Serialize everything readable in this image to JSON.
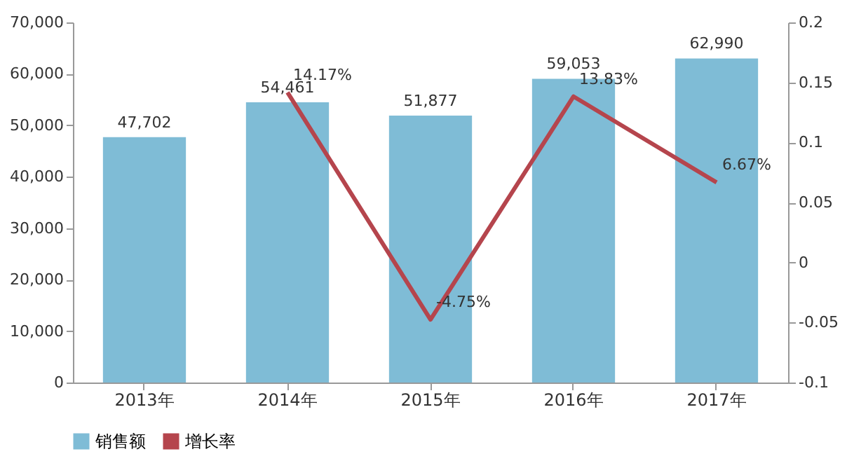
{
  "chart_data": {
    "type": "bar",
    "categories": [
      "2013年",
      "2014年",
      "2015年",
      "2016年",
      "2017年"
    ],
    "series": [
      {
        "name": "销售额",
        "color": "#7fbcd6",
        "values": [
          47702,
          54461,
          51877,
          59053,
          62990
        ],
        "value_labels": [
          "47,702",
          "54,461",
          "51,877",
          "59,053",
          "62,990"
        ]
      },
      {
        "name": "增长率",
        "type": "line",
        "axis": "y2",
        "color": "#b5454d",
        "values": [
          null,
          0.1417,
          -0.0475,
          0.1383,
          0.0667
        ],
        "value_labels": [
          null,
          "14.17%",
          "-4.75%",
          "13.83%",
          "6.67%"
        ]
      }
    ],
    "ylim": [
      0,
      70000
    ],
    "yticks": [
      {
        "value": 0,
        "label": "0"
      },
      {
        "value": 10000,
        "label": "10,000"
      },
      {
        "value": 20000,
        "label": "20,000"
      },
      {
        "value": 30000,
        "label": "30,000"
      },
      {
        "value": 40000,
        "label": "40,000"
      },
      {
        "value": 50000,
        "label": "50,000"
      },
      {
        "value": 60000,
        "label": "60,000"
      },
      {
        "value": 70000,
        "label": "70,000"
      }
    ],
    "y2lim": [
      -0.1,
      0.2
    ],
    "y2ticks": [
      {
        "value": -0.1,
        "label": "-0.1"
      },
      {
        "value": -0.05,
        "label": "-0.05"
      },
      {
        "value": 0,
        "label": "0"
      },
      {
        "value": 0.05,
        "label": "0.05"
      },
      {
        "value": 0.1,
        "label": "0.1"
      },
      {
        "value": 0.15,
        "label": "0.15"
      },
      {
        "value": 0.2,
        "label": "0.2"
      }
    ],
    "legend": "bottom",
    "grid": false,
    "line_style": "solid",
    "marker": "none"
  }
}
